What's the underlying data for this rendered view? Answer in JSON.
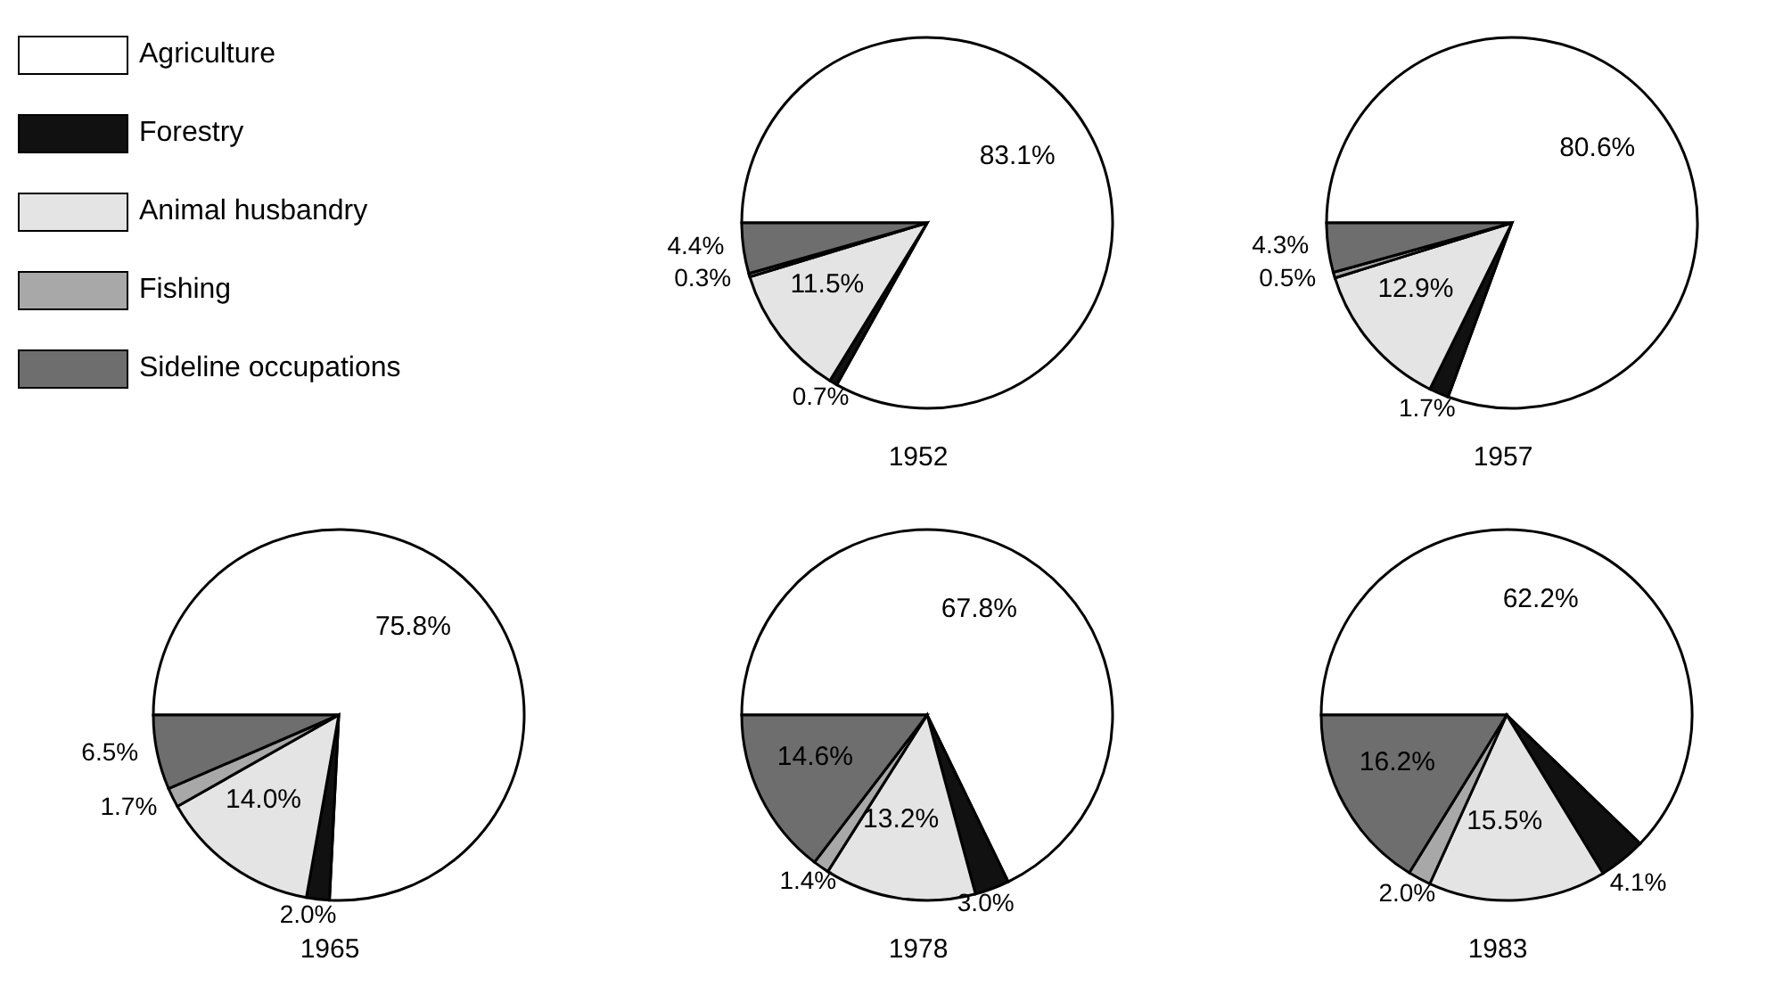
{
  "chart_data": [
    {
      "type": "pie",
      "title": "1952",
      "categories": [
        "Agriculture",
        "Forestry",
        "Animal husbandry",
        "Fishing",
        "Sideline occupations"
      ],
      "values": [
        83.1,
        0.7,
        11.5,
        0.3,
        4.4
      ],
      "value_labels": [
        "83.1%",
        "0.7%",
        "11.5%",
        "0.3%",
        "4.4%"
      ],
      "colors": [
        "#ffffff",
        "#111111",
        "#e4e4e4",
        "#a8a8a8",
        "#6e6e6e"
      ],
      "legend": "left"
    },
    {
      "type": "pie",
      "title": "1957",
      "categories": [
        null,
        null,
        null,
        null,
        null
      ],
      "values": [
        80.6,
        1.7,
        12.9,
        0.5,
        4.3
      ],
      "value_labels": [
        "80.6%",
        "1.7%",
        "12.9%",
        "0.5%",
        "4.3%"
      ],
      "colors": [
        "#ffffff",
        "#111111",
        "#e4e4e4",
        "#a8a8a8",
        "#6e6e6e"
      ]
    },
    {
      "type": "pie",
      "title": "1965",
      "categories": [
        null,
        null,
        null,
        null,
        null
      ],
      "values": [
        75.8,
        2.0,
        14.0,
        1.7,
        6.5
      ],
      "value_labels": [
        "75.8%",
        "2.0%",
        "14.0%",
        "1.7%",
        "6.5%"
      ],
      "colors": [
        "#ffffff",
        "#111111",
        "#e4e4e4",
        "#a8a8a8",
        "#6e6e6e"
      ]
    },
    {
      "type": "pie",
      "title": "1978",
      "categories": [
        null,
        null,
        null,
        null,
        null
      ],
      "values": [
        67.8,
        3.0,
        13.2,
        1.4,
        14.6
      ],
      "value_labels": [
        "67.8%",
        "3.0%",
        "13.2%",
        "1.4%",
        "14.6%"
      ],
      "colors": [
        "#ffffff",
        "#111111",
        "#e4e4e4",
        "#a8a8a8",
        "#6e6e6e"
      ]
    },
    {
      "type": "pie",
      "title": "1983",
      "categories": [
        null,
        null,
        null,
        null,
        null
      ],
      "values": [
        62.2,
        4.1,
        15.5,
        2.0,
        16.2
      ],
      "value_labels": [
        "62.2%",
        "4.1%",
        "15.5%",
        "2.0%",
        "16.2%"
      ],
      "colors": [
        "#ffffff",
        "#111111",
        "#e4e4e4",
        "#a8a8a8",
        "#6e6e6e"
      ]
    }
  ]
}
